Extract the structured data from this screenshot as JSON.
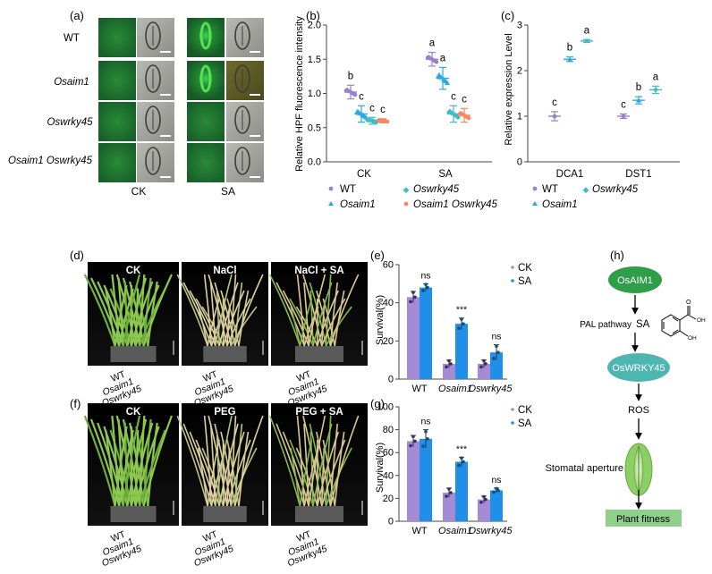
{
  "panel_labels": {
    "a": "(a)",
    "b": "(b)",
    "c": "(c)",
    "d": "(d)",
    "e": "(e)",
    "f": "(f)",
    "g": "(g)",
    "h": "(h)"
  },
  "panel_a": {
    "rows": [
      "WT",
      "Osaim1",
      "Oswrky45",
      "Osaim1 Oswrky45"
    ],
    "columns": [
      "CK",
      "SA"
    ],
    "colors": {
      "fluor": "#1f7a2e",
      "bright": "#2fc83a",
      "gray": "#9a9a9a"
    }
  },
  "panel_d": {
    "titles": [
      "CK",
      "NaCl",
      "NaCl + SA"
    ],
    "genotypes": [
      "WT",
      "Osaim1",
      "Oswrky45"
    ]
  },
  "panel_f": {
    "titles": [
      "CK",
      "PEG",
      "PEG + SA"
    ],
    "genotypes": [
      "WT",
      "Osaim1",
      "Oswrky45"
    ]
  },
  "panel_h": {
    "nodes": [
      "OsAIM1",
      "SA",
      "OsWRKY45",
      "ROS",
      "Stomatal aperture",
      "Plant fitness"
    ],
    "pathway_label": "PAL pathway",
    "molecule_labels": [
      "O",
      "OH",
      "OH"
    ],
    "colors": {
      "node_green": "#2e9e48",
      "node_teal": "#4eb6b0",
      "fitness": "#8fd18c"
    }
  },
  "chart_data": [
    {
      "id": "b",
      "type": "scatter",
      "ylabel": "Relative HPF fluorescence intensity",
      "categories": [
        "CK",
        "SA"
      ],
      "ylim": [
        0,
        2.0
      ],
      "yticks": [
        "0.0",
        "0.5",
        "1.0",
        "1.5",
        "2.0"
      ],
      "series": [
        {
          "name": "WT",
          "color": "#9a7fd1",
          "marker": "circle",
          "means": [
            1.02,
            1.5
          ],
          "err": [
            0.1,
            0.1
          ],
          "letters": [
            "b",
            "a"
          ]
        },
        {
          "name": "Osaim1",
          "color": "#2da9e1",
          "marker": "triangle",
          "means": [
            0.7,
            1.22
          ],
          "err": [
            0.12,
            0.16
          ],
          "letters": [
            "c",
            "a"
          ]
        },
        {
          "name": "Oswrky45",
          "color": "#3fbcc8",
          "marker": "diamond",
          "means": [
            0.6,
            0.7
          ],
          "err": [
            0.05,
            0.12
          ],
          "letters": [
            "c",
            "c"
          ]
        },
        {
          "name": "Osaim1 Oswrky45",
          "color": "#f08a60",
          "marker": "circle",
          "means": [
            0.6,
            0.68
          ],
          "err": [
            0.03,
            0.1
          ],
          "letters": [
            "c",
            "c"
          ]
        }
      ]
    },
    {
      "id": "c",
      "type": "scatter",
      "ylabel": "Relative expression Level",
      "categories": [
        "DCA1",
        "DST1"
      ],
      "ylim": [
        0,
        3
      ],
      "yticks": [
        "0",
        "1",
        "2",
        "3"
      ],
      "series": [
        {
          "name": "WT",
          "color": "#9a7fd1",
          "marker": "circle",
          "means": [
            1.0,
            1.0
          ],
          "err": [
            0.1,
            0.05
          ],
          "letters": [
            "c",
            "c"
          ]
        },
        {
          "name": "Osaim1",
          "color": "#2da9e1",
          "marker": "triangle",
          "means": [
            2.25,
            1.35
          ],
          "err": [
            0.05,
            0.08
          ],
          "letters": [
            "b",
            "b"
          ]
        },
        {
          "name": "Oswrky45",
          "color": "#3fbcc8",
          "marker": "diamond",
          "means": [
            2.65,
            1.58
          ],
          "err": [
            0.03,
            0.08
          ],
          "letters": [
            "a",
            "a"
          ]
        }
      ]
    },
    {
      "id": "e",
      "type": "bar",
      "ylabel": "Survival(%)",
      "categories": [
        "WT",
        "Osaim1",
        "Oswrky45"
      ],
      "ylim": [
        0,
        60
      ],
      "yticks": [
        "0",
        "20",
        "40",
        "60"
      ],
      "series": [
        {
          "name": "CK",
          "color": "#a58bd5",
          "values": [
            43,
            8,
            8
          ],
          "err": [
            3,
            2,
            2
          ]
        },
        {
          "name": "SA",
          "color": "#1f8fe8",
          "values": [
            48,
            29,
            14
          ],
          "err": [
            2,
            3,
            4
          ]
        }
      ],
      "significance": [
        "ns",
        "***",
        "ns"
      ]
    },
    {
      "id": "g",
      "type": "bar",
      "ylabel": "Survival(%)",
      "categories": [
        "WT",
        "Osaim1",
        "Oswrky45"
      ],
      "ylim": [
        0,
        100
      ],
      "yticks": [
        "0",
        "20",
        "40",
        "60",
        "80",
        "100"
      ],
      "series": [
        {
          "name": "CK",
          "color": "#a58bd5",
          "values": [
            70,
            25,
            19
          ],
          "err": [
            5,
            4,
            3
          ]
        },
        {
          "name": "SA",
          "color": "#1f8fe8",
          "values": [
            72,
            52,
            27
          ],
          "err": [
            8,
            4,
            2
          ]
        }
      ],
      "significance": [
        "ns",
        "***",
        "ns"
      ]
    }
  ]
}
